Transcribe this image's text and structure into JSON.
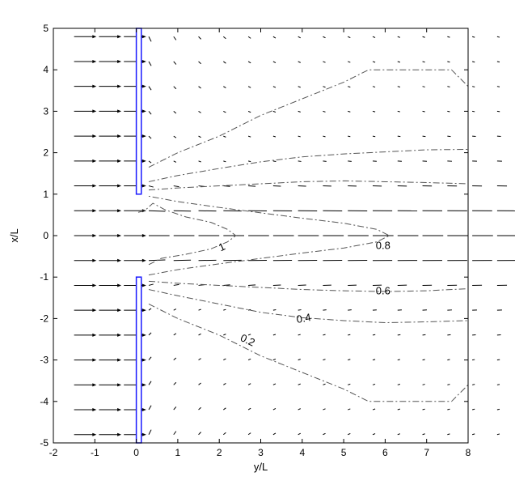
{
  "chart_data": {
    "type": "vector-field-contour",
    "xlabel": "y/L",
    "ylabel": "x/L",
    "xlim": [
      -2,
      8
    ],
    "ylim": [
      -5,
      5
    ],
    "xticks": [
      "-2",
      "-1",
      "0",
      "1",
      "2",
      "3",
      "4",
      "5",
      "6",
      "7",
      "8"
    ],
    "yticks": [
      "5",
      "4",
      "3",
      "2",
      "1",
      "0",
      "-1",
      "-2",
      "-3",
      "-4",
      "-5"
    ],
    "walls": [
      {
        "name": "upper-wall",
        "y_range": [
          0,
          0.12
        ],
        "x_range": [
          1,
          5
        ]
      },
      {
        "name": "lower-wall",
        "y_range": [
          0,
          0.12
        ],
        "x_range": [
          -5,
          -1
        ]
      }
    ],
    "wall_color": "#1a1aff",
    "contours": [
      {
        "level": "1",
        "label": "1",
        "label_at": [
          2.1,
          -0.35
        ],
        "label_rot": -25,
        "points": [
          [
            0.3,
            -0.7
          ],
          [
            0.6,
            -0.55
          ],
          [
            1.2,
            -0.45
          ],
          [
            1.8,
            -0.32
          ],
          [
            2.2,
            -0.15
          ],
          [
            2.4,
            0
          ],
          [
            2.2,
            0.15
          ],
          [
            1.8,
            0.32
          ],
          [
            1.2,
            0.45
          ],
          [
            0.7,
            0.62
          ],
          [
            0.4,
            0.78
          ],
          [
            0.2,
            0.6
          ],
          [
            0,
            0.55
          ]
        ]
      },
      {
        "level": "0.8",
        "label": "0.8",
        "label_at": [
          5.95,
          -0.32
        ],
        "label_rot": 0,
        "points": [
          [
            0.3,
            -0.95
          ],
          [
            1,
            -0.82
          ],
          [
            2,
            -0.68
          ],
          [
            3,
            -0.55
          ],
          [
            4,
            -0.42
          ],
          [
            5,
            -0.3
          ],
          [
            5.8,
            -0.15
          ],
          [
            6.1,
            0
          ],
          [
            5.8,
            0.15
          ],
          [
            5,
            0.3
          ],
          [
            4,
            0.42
          ],
          [
            3,
            0.55
          ],
          [
            2,
            0.68
          ],
          [
            1,
            0.82
          ],
          [
            0.3,
            0.95
          ]
        ]
      },
      {
        "level": "0.6",
        "label": "0.6",
        "label_at": [
          5.95,
          -1.42
        ],
        "label_rot": 0,
        "points": [
          [
            0.3,
            -1.1
          ],
          [
            1,
            -1.15
          ],
          [
            2,
            -1.2
          ],
          [
            3,
            -1.25
          ],
          [
            4,
            -1.3
          ],
          [
            5,
            -1.33
          ],
          [
            6,
            -1.35
          ],
          [
            7,
            -1.33
          ],
          [
            8,
            -1.28
          ]
        ]
      },
      {
        "level": "0.6b",
        "label": "",
        "label_at": null,
        "label_rot": 0,
        "points": [
          [
            0.3,
            1.1
          ],
          [
            1,
            1.15
          ],
          [
            2,
            1.2
          ],
          [
            3,
            1.25
          ],
          [
            4,
            1.3
          ],
          [
            5,
            1.32
          ],
          [
            6,
            1.3
          ],
          [
            7,
            1.28
          ],
          [
            8,
            1.25
          ]
        ]
      },
      {
        "level": "0.4",
        "label": "0.4",
        "label_at": [
          4.05,
          -2.08
        ],
        "label_rot": -10,
        "points": [
          [
            0.3,
            -1.3
          ],
          [
            1,
            -1.45
          ],
          [
            2,
            -1.65
          ],
          [
            3,
            -1.85
          ],
          [
            4,
            -1.98
          ],
          [
            5,
            -2.05
          ],
          [
            6,
            -2.1
          ],
          [
            7,
            -2.08
          ],
          [
            8,
            -2.05
          ]
        ]
      },
      {
        "level": "0.4b",
        "label": "",
        "label_at": null,
        "label_rot": 0,
        "points": [
          [
            0.3,
            1.3
          ],
          [
            1,
            1.45
          ],
          [
            2,
            1.62
          ],
          [
            3,
            1.78
          ],
          [
            4,
            1.9
          ],
          [
            5,
            1.97
          ],
          [
            6,
            2.02
          ],
          [
            7,
            2.07
          ],
          [
            8,
            2.08
          ]
        ]
      },
      {
        "level": "0.2",
        "label": "0.2",
        "label_at": [
          2.65,
          -2.6
        ],
        "label_rot": 25,
        "points": [
          [
            0.3,
            -1.65
          ],
          [
            1,
            -2
          ],
          [
            2,
            -2.4
          ],
          [
            3,
            -2.9
          ],
          [
            4,
            -3.3
          ],
          [
            5,
            -3.7
          ],
          [
            5.6,
            -4
          ],
          [
            6,
            -4
          ],
          [
            7,
            -4
          ],
          [
            7.6,
            -4
          ],
          [
            8,
            -3.6
          ]
        ]
      },
      {
        "level": "0.2b",
        "label": "",
        "label_at": null,
        "label_rot": 0,
        "points": [
          [
            0.3,
            1.65
          ],
          [
            1,
            2
          ],
          [
            2,
            2.4
          ],
          [
            3,
            2.9
          ],
          [
            4,
            3.3
          ],
          [
            5,
            3.7
          ],
          [
            5.6,
            4
          ],
          [
            6,
            4
          ],
          [
            7,
            4
          ],
          [
            7.6,
            4
          ],
          [
            8,
            3.6
          ]
        ]
      }
    ]
  }
}
